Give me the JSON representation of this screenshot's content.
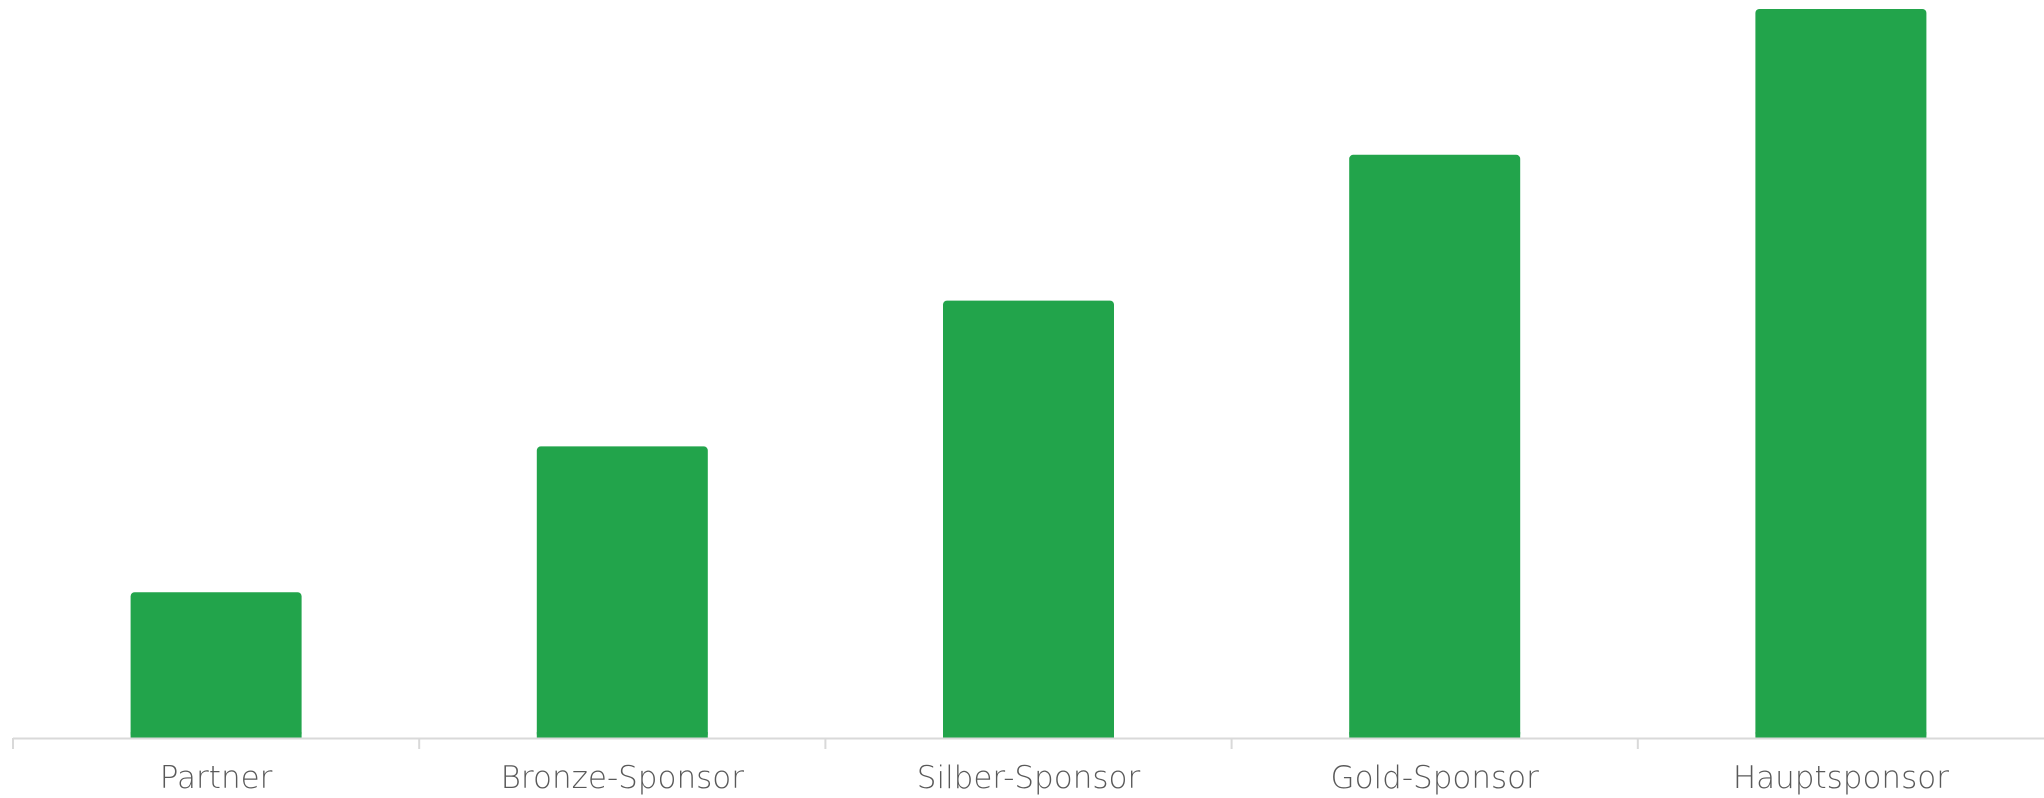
{
  "chart_data": {
    "type": "bar",
    "categories": [
      "Partner",
      "Bronze-Sponsor",
      "Silber-Sponsor",
      "Gold-Sponsor",
      "Hauptsponsor"
    ],
    "series": [
      {
        "values": [
          1,
          2,
          3,
          4,
          5
        ]
      }
    ],
    "ylim": [
      0,
      5
    ],
    "title": "",
    "xlabel": "",
    "ylabel": "",
    "grid": false,
    "legend": "none",
    "bar_color": "#22a44b",
    "axis_color": "#d9d9d9",
    "label_color": "#595959"
  }
}
